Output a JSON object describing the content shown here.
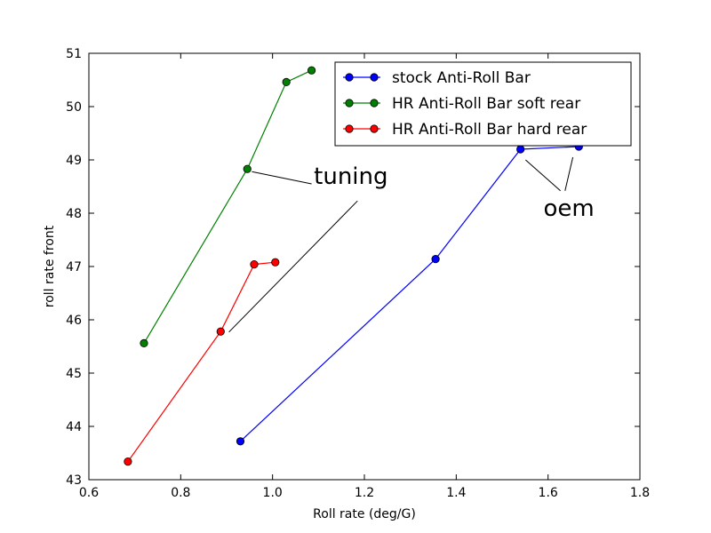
{
  "chart_data": {
    "type": "line",
    "title": "",
    "xlabel": "Roll rate (deg/G)",
    "ylabel": "roll rate front",
    "xlim": [
      0.6,
      1.8
    ],
    "ylim": [
      43,
      51
    ],
    "xticks": [
      0.6,
      0.8,
      1.0,
      1.2,
      1.4,
      1.6,
      1.8
    ],
    "xtick_labels": [
      "0.6",
      "0.8",
      "1.0",
      "1.2",
      "1.4",
      "1.6",
      "1.8"
    ],
    "yticks": [
      43,
      44,
      45,
      46,
      47,
      48,
      49,
      50,
      51
    ],
    "ytick_labels": [
      "43",
      "44",
      "45",
      "46",
      "47",
      "48",
      "49",
      "50",
      "51"
    ],
    "grid": false,
    "legend_position": "top-right",
    "series": [
      {
        "name": "stock Anti-Roll Bar",
        "color": "#0000ff",
        "x": [
          0.93,
          1.355,
          1.54,
          1.667
        ],
        "y": [
          43.72,
          47.14,
          49.2,
          49.25
        ]
      },
      {
        "name": "HR Anti-Roll Bar soft rear",
        "color": "#008000",
        "x": [
          0.72,
          0.945,
          1.03,
          1.085
        ],
        "y": [
          45.56,
          48.83,
          50.46,
          50.68
        ]
      },
      {
        "name": "HR Anti-Roll Bar hard rear",
        "color": "#ff0000",
        "x": [
          0.685,
          0.887,
          0.96,
          1.006
        ],
        "y": [
          43.34,
          45.78,
          47.04,
          47.08
        ]
      }
    ],
    "annotations": [
      {
        "text": "tuning",
        "text_at": [
          1.09,
          48.55
        ],
        "arrows": [
          {
            "from": [
              1.085,
              48.55
            ],
            "to": [
              0.955,
              48.78
            ]
          },
          {
            "from": [
              1.185,
              48.23
            ],
            "to": [
              0.905,
              45.77
            ]
          }
        ]
      },
      {
        "text": "oem",
        "text_at": [
          1.59,
          47.95
        ],
        "arrows": [
          {
            "from": [
              1.627,
              48.42
            ],
            "to": [
              1.551,
              49.0
            ]
          },
          {
            "from": [
              1.637,
              48.42
            ],
            "to": [
              1.654,
              49.05
            ]
          }
        ]
      }
    ]
  }
}
